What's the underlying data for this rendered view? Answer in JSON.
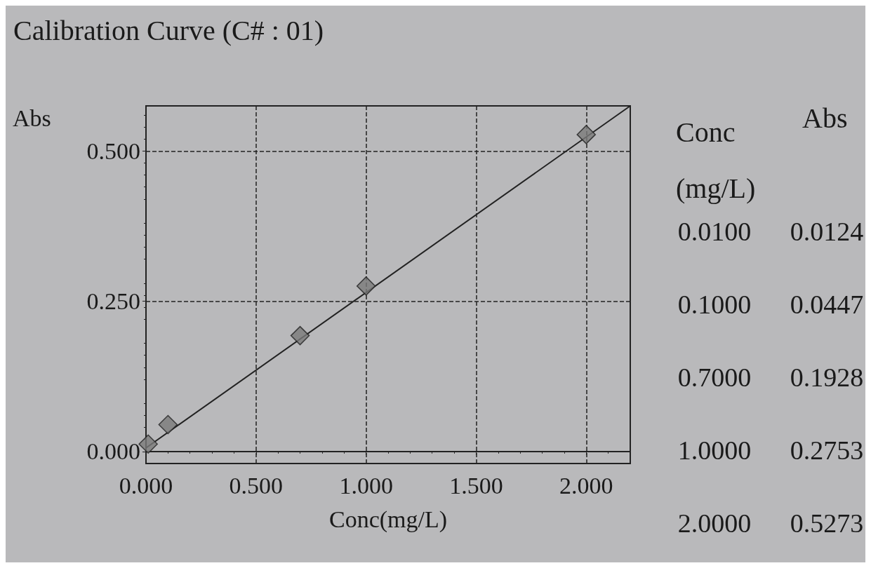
{
  "chart_data": {
    "type": "scatter",
    "title": "Calibration Curve (C# : 01)",
    "xlabel": "Conc(mg/L)",
    "ylabel": "Abs",
    "x": [
      0.01,
      0.1,
      0.7,
      1.0,
      2.0
    ],
    "series": [
      {
        "color": "#7a7a7a",
        "values": [
          0.0124,
          0.0447,
          0.1928,
          0.2753,
          0.5273
        ]
      },
      {
        "type": "line",
        "color": "#222222",
        "x": [
          0,
          2.2
        ],
        "values": [
          0.006,
          0.575
        ],
        "marker": "none"
      }
    ],
    "xlim": [
      0,
      2.2
    ],
    "xticks": [
      {
        "value": 0,
        "label": "0.000"
      },
      {
        "value": 0.5,
        "label": "0.500"
      },
      {
        "value": 1,
        "label": "1.000"
      },
      {
        "value": 1.5,
        "label": "1.500"
      },
      {
        "value": 2,
        "label": "2.000"
      }
    ],
    "ylim": [
      -0.02,
      0.575
    ],
    "yticks": [
      {
        "value": 0,
        "label": "0.000"
      },
      {
        "value": 0.25,
        "label": "0.250"
      },
      {
        "value": 0.5,
        "label": "0.500"
      }
    ],
    "grid": true,
    "marker": "diamond",
    "annotations": [
      "Conc\n(mg/L)",
      "Abs",
      "0.0100",
      "0.0124",
      "0.1000",
      "0.0447",
      "0.7000",
      "0.1928",
      "1.0000",
      "0.2753",
      "2.0000",
      "0.5273"
    ]
  }
}
